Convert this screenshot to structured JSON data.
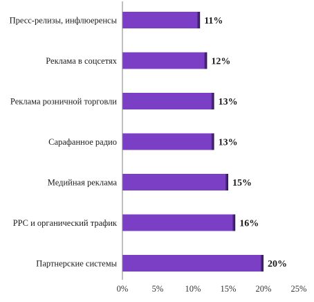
{
  "chart_data": {
    "type": "bar",
    "orientation": "horizontal",
    "categories": [
      "Пресс-релизы, инфлюеренсы",
      "Реклама в соцсетях",
      "Реклама розничной торговли",
      "Сарафанное радио",
      "Медийная реклама",
      "PPC и органический трафик",
      "Партнерские системы"
    ],
    "values": [
      11,
      12,
      13,
      13,
      15,
      16,
      20
    ],
    "data_labels": [
      "11%",
      "12%",
      "13%",
      "13%",
      "15%",
      "16%",
      "20%"
    ],
    "xlim": [
      0,
      25
    ],
    "x_ticks": [
      0,
      5,
      10,
      15,
      20,
      25
    ],
    "x_tick_labels": [
      "0%",
      "5%",
      "10%",
      "15%",
      "20%",
      "25%"
    ],
    "title": "",
    "xlabel": "",
    "ylabel": "",
    "grid": false,
    "legend": "none",
    "colors": {
      "bar": "#7b3fc6",
      "bar_edge": "#3e1c6e",
      "axis": "#7f7f7f"
    }
  }
}
